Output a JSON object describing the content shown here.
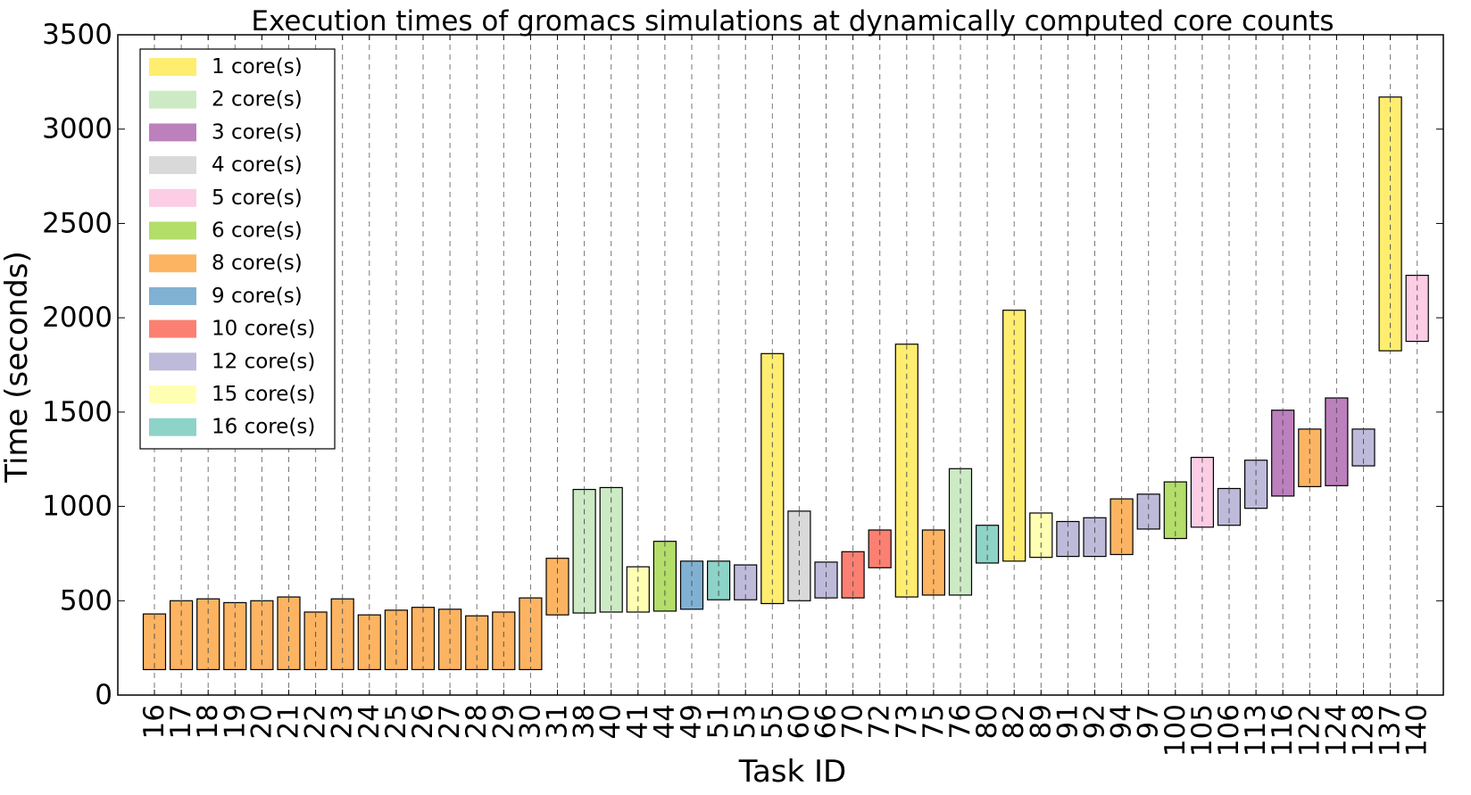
{
  "chart_data": {
    "type": "bar",
    "subtype": "floating-bar",
    "title": "Execution times of gromacs simulations at dynamically computed core counts",
    "xlabel": "Task ID",
    "ylabel": "Time (seconds)",
    "ylim": [
      0,
      3500
    ],
    "yticks": [
      0,
      500,
      1000,
      1500,
      2000,
      2500,
      3000,
      3500
    ],
    "grid": "vertical dashed lines at each task",
    "legend_position": "upper-left",
    "legend": [
      {
        "label": "1 core(s)",
        "color": "#ffed6f"
      },
      {
        "label": "2 core(s)",
        "color": "#ccebc5"
      },
      {
        "label": "3 core(s)",
        "color": "#bc80bd"
      },
      {
        "label": "4 core(s)",
        "color": "#d9d9d9"
      },
      {
        "label": "5 core(s)",
        "color": "#fccde5"
      },
      {
        "label": "6 core(s)",
        "color": "#b3de69"
      },
      {
        "label": "8 core(s)",
        "color": "#fdb462"
      },
      {
        "label": "9 core(s)",
        "color": "#80b1d3"
      },
      {
        "label": "10 core(s)",
        "color": "#fb8072"
      },
      {
        "label": "12 core(s)",
        "color": "#bebada"
      },
      {
        "label": "15 core(s)",
        "color": "#ffffb3"
      },
      {
        "label": "16 core(s)",
        "color": "#8dd3c7"
      }
    ],
    "tasks": [
      {
        "id": "16",
        "start": 135,
        "end": 430,
        "cores": 8
      },
      {
        "id": "17",
        "start": 135,
        "end": 500,
        "cores": 8
      },
      {
        "id": "18",
        "start": 135,
        "end": 510,
        "cores": 8
      },
      {
        "id": "19",
        "start": 135,
        "end": 490,
        "cores": 8
      },
      {
        "id": "20",
        "start": 135,
        "end": 500,
        "cores": 8
      },
      {
        "id": "21",
        "start": 135,
        "end": 520,
        "cores": 8
      },
      {
        "id": "22",
        "start": 135,
        "end": 440,
        "cores": 8
      },
      {
        "id": "23",
        "start": 135,
        "end": 510,
        "cores": 8
      },
      {
        "id": "24",
        "start": 135,
        "end": 425,
        "cores": 8
      },
      {
        "id": "25",
        "start": 135,
        "end": 450,
        "cores": 8
      },
      {
        "id": "26",
        "start": 135,
        "end": 465,
        "cores": 8
      },
      {
        "id": "27",
        "start": 135,
        "end": 455,
        "cores": 8
      },
      {
        "id": "28",
        "start": 135,
        "end": 420,
        "cores": 8
      },
      {
        "id": "29",
        "start": 135,
        "end": 440,
        "cores": 8
      },
      {
        "id": "30",
        "start": 135,
        "end": 515,
        "cores": 8
      },
      {
        "id": "31",
        "start": 425,
        "end": 725,
        "cores": 8
      },
      {
        "id": "38",
        "start": 435,
        "end": 1090,
        "cores": 2
      },
      {
        "id": "40",
        "start": 440,
        "end": 1100,
        "cores": 2
      },
      {
        "id": "41",
        "start": 440,
        "end": 680,
        "cores": 15
      },
      {
        "id": "44",
        "start": 445,
        "end": 815,
        "cores": 6
      },
      {
        "id": "49",
        "start": 455,
        "end": 710,
        "cores": 9
      },
      {
        "id": "51",
        "start": 505,
        "end": 710,
        "cores": 16
      },
      {
        "id": "53",
        "start": 505,
        "end": 690,
        "cores": 12
      },
      {
        "id": "55",
        "start": 485,
        "end": 1810,
        "cores": 1
      },
      {
        "id": "60",
        "start": 500,
        "end": 975,
        "cores": 4
      },
      {
        "id": "66",
        "start": 515,
        "end": 705,
        "cores": 12
      },
      {
        "id": "70",
        "start": 515,
        "end": 760,
        "cores": 10
      },
      {
        "id": "72",
        "start": 675,
        "end": 875,
        "cores": 10
      },
      {
        "id": "73",
        "start": 520,
        "end": 1860,
        "cores": 1
      },
      {
        "id": "75",
        "start": 530,
        "end": 875,
        "cores": 8
      },
      {
        "id": "76",
        "start": 530,
        "end": 1200,
        "cores": 2
      },
      {
        "id": "80",
        "start": 700,
        "end": 900,
        "cores": 16
      },
      {
        "id": "82",
        "start": 710,
        "end": 2040,
        "cores": 1
      },
      {
        "id": "89",
        "start": 730,
        "end": 965,
        "cores": 15
      },
      {
        "id": "91",
        "start": 735,
        "end": 920,
        "cores": 12
      },
      {
        "id": "92",
        "start": 735,
        "end": 940,
        "cores": 12
      },
      {
        "id": "94",
        "start": 745,
        "end": 1040,
        "cores": 8
      },
      {
        "id": "97",
        "start": 880,
        "end": 1065,
        "cores": 12
      },
      {
        "id": "100",
        "start": 830,
        "end": 1130,
        "cores": 6
      },
      {
        "id": "105",
        "start": 890,
        "end": 1260,
        "cores": 5
      },
      {
        "id": "106",
        "start": 900,
        "end": 1095,
        "cores": 12
      },
      {
        "id": "113",
        "start": 990,
        "end": 1245,
        "cores": 12
      },
      {
        "id": "116",
        "start": 1055,
        "end": 1510,
        "cores": 3
      },
      {
        "id": "122",
        "start": 1105,
        "end": 1410,
        "cores": 8
      },
      {
        "id": "124",
        "start": 1110,
        "end": 1575,
        "cores": 3
      },
      {
        "id": "128",
        "start": 1215,
        "end": 1410,
        "cores": 12
      },
      {
        "id": "137",
        "start": 1825,
        "end": 3170,
        "cores": 1
      },
      {
        "id": "140",
        "start": 1875,
        "end": 2225,
        "cores": 5
      }
    ]
  }
}
